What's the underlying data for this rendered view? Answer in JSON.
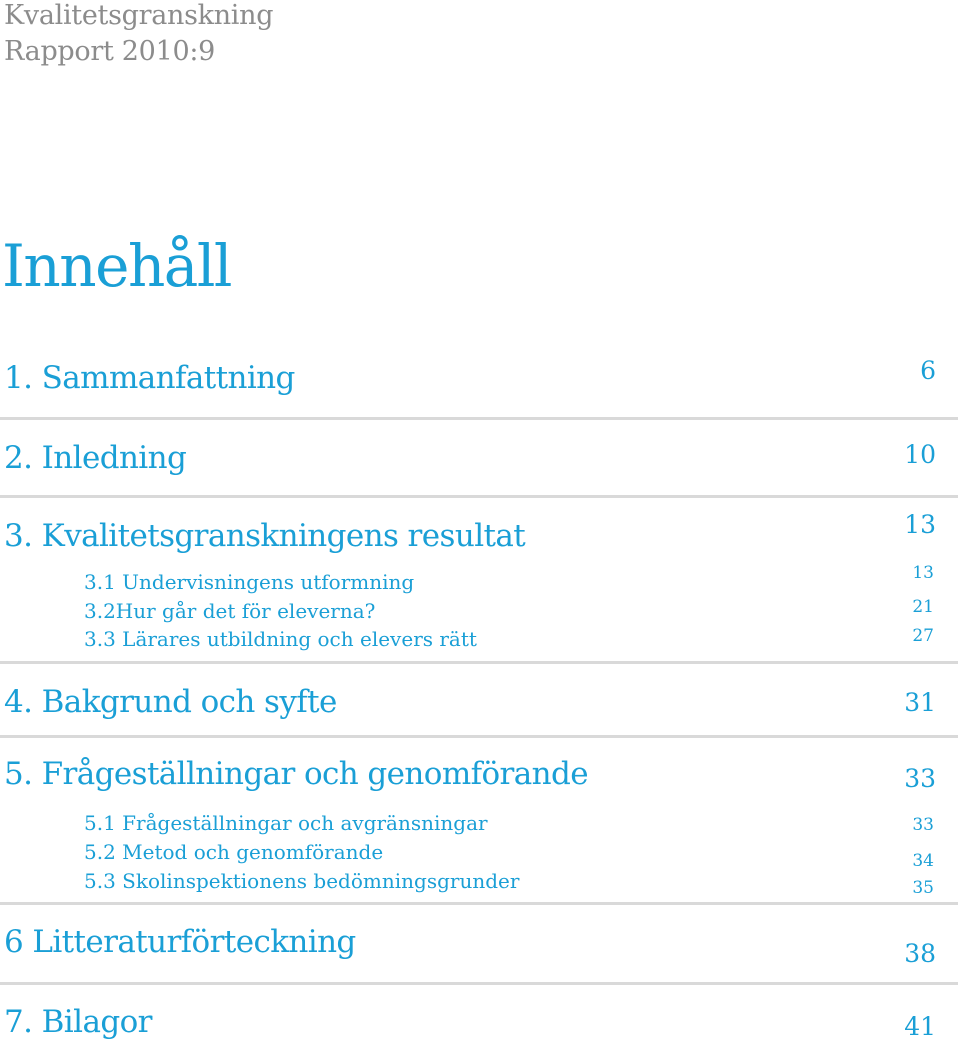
{
  "header": {
    "series": "Kvalitetsgranskning",
    "report": "Rapport 2010:9"
  },
  "toc": {
    "title": "Innehåll",
    "entries": [
      {
        "label": "1. Sammanfattning",
        "page": "6"
      },
      {
        "label": "2. Inledning",
        "page": "10"
      },
      {
        "label": "3. Kvalitetsgranskningens resultat",
        "page": "13",
        "subs": [
          {
            "label": "3.1 Undervisningens utformning",
            "page": "13"
          },
          {
            "label": "3.2Hur går det för eleverna?",
            "page": "21"
          },
          {
            "label": "3.3 Lärares utbildning och elevers rätt",
            "page": "27"
          }
        ]
      },
      {
        "label": "4. Bakgrund och syfte",
        "page": "31"
      },
      {
        "label": "5. Frågeställningar och genomförande",
        "page": "33",
        "subs": [
          {
            "label": "5.1 Frågeställningar och avgränsningar",
            "page": "33"
          },
          {
            "label": "5.2 Metod och genomförande",
            "page": "34"
          },
          {
            "label": "5.3 Skolinspektionens bedömningsgrunder",
            "page": "35"
          }
        ]
      },
      {
        "label": "6 Litteraturförteckning",
        "page": "38"
      },
      {
        "label": "7. Bilagor",
        "page": "41"
      }
    ]
  },
  "colors": {
    "accent": "#1a9fd6",
    "header_gray": "#8c8c8c",
    "rule_gray": "#d9d9d9"
  }
}
